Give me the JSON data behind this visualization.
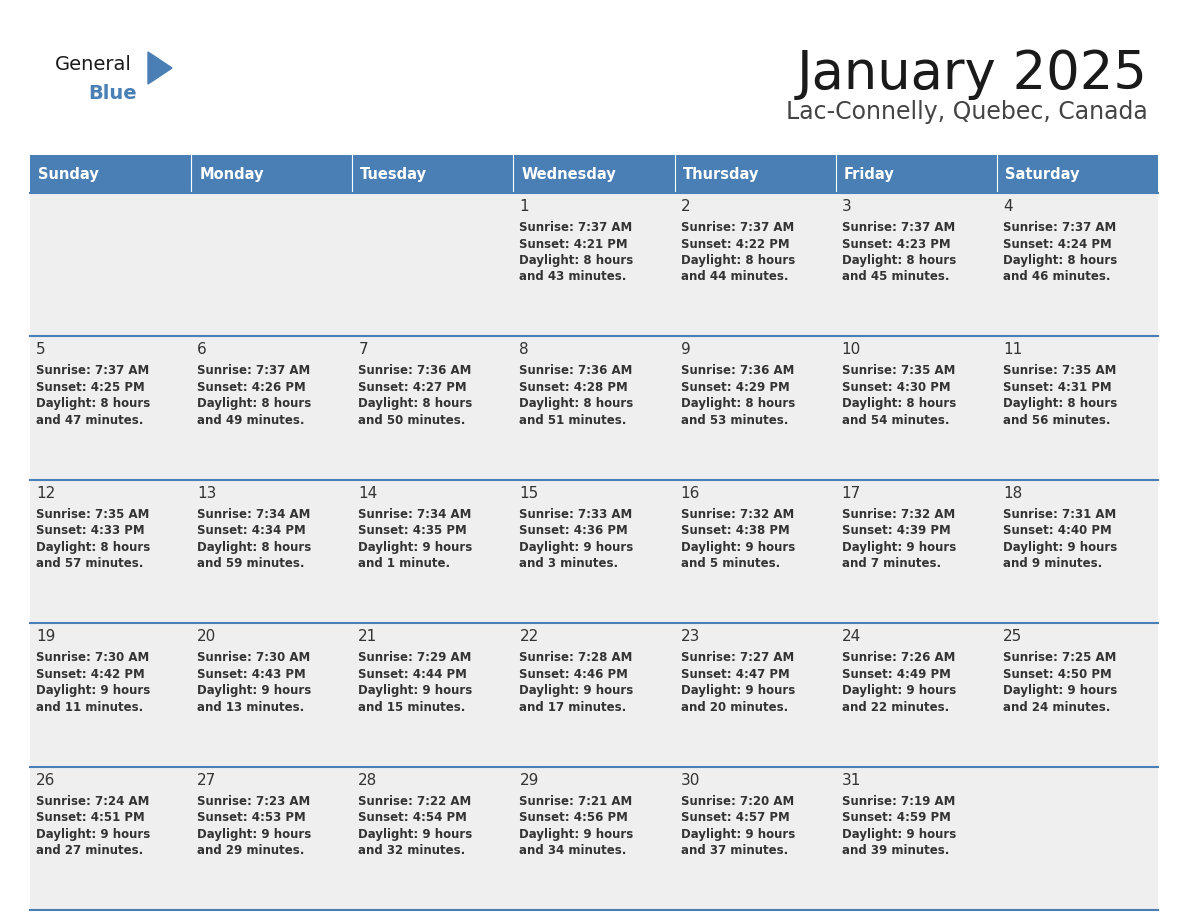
{
  "title": "January 2025",
  "subtitle": "Lac-Connelly, Quebec, Canada",
  "header_bg": "#4a7fb5",
  "header_text": "#ffffff",
  "cell_bg": "#efefef",
  "day_number_color": "#333333",
  "cell_text_color": "#333333",
  "border_color": "#4a7fb5",
  "days_of_week": [
    "Sunday",
    "Monday",
    "Tuesday",
    "Wednesday",
    "Thursday",
    "Friday",
    "Saturday"
  ],
  "calendar_data": [
    [
      {
        "day": "",
        "sunrise": "",
        "sunset": "",
        "daylight_h": "",
        "daylight_m": ""
      },
      {
        "day": "",
        "sunrise": "",
        "sunset": "",
        "daylight_h": "",
        "daylight_m": ""
      },
      {
        "day": "",
        "sunrise": "",
        "sunset": "",
        "daylight_h": "",
        "daylight_m": ""
      },
      {
        "day": "1",
        "sunrise": "7:37 AM",
        "sunset": "4:21 PM",
        "daylight_h": "8 hours",
        "daylight_m": "43 minutes."
      },
      {
        "day": "2",
        "sunrise": "7:37 AM",
        "sunset": "4:22 PM",
        "daylight_h": "8 hours",
        "daylight_m": "44 minutes."
      },
      {
        "day": "3",
        "sunrise": "7:37 AM",
        "sunset": "4:23 PM",
        "daylight_h": "8 hours",
        "daylight_m": "45 minutes."
      },
      {
        "day": "4",
        "sunrise": "7:37 AM",
        "sunset": "4:24 PM",
        "daylight_h": "8 hours",
        "daylight_m": "46 minutes."
      }
    ],
    [
      {
        "day": "5",
        "sunrise": "7:37 AM",
        "sunset": "4:25 PM",
        "daylight_h": "8 hours",
        "daylight_m": "47 minutes."
      },
      {
        "day": "6",
        "sunrise": "7:37 AM",
        "sunset": "4:26 PM",
        "daylight_h": "8 hours",
        "daylight_m": "49 minutes."
      },
      {
        "day": "7",
        "sunrise": "7:36 AM",
        "sunset": "4:27 PM",
        "daylight_h": "8 hours",
        "daylight_m": "50 minutes."
      },
      {
        "day": "8",
        "sunrise": "7:36 AM",
        "sunset": "4:28 PM",
        "daylight_h": "8 hours",
        "daylight_m": "51 minutes."
      },
      {
        "day": "9",
        "sunrise": "7:36 AM",
        "sunset": "4:29 PM",
        "daylight_h": "8 hours",
        "daylight_m": "53 minutes."
      },
      {
        "day": "10",
        "sunrise": "7:35 AM",
        "sunset": "4:30 PM",
        "daylight_h": "8 hours",
        "daylight_m": "54 minutes."
      },
      {
        "day": "11",
        "sunrise": "7:35 AM",
        "sunset": "4:31 PM",
        "daylight_h": "8 hours",
        "daylight_m": "56 minutes."
      }
    ],
    [
      {
        "day": "12",
        "sunrise": "7:35 AM",
        "sunset": "4:33 PM",
        "daylight_h": "8 hours",
        "daylight_m": "57 minutes."
      },
      {
        "day": "13",
        "sunrise": "7:34 AM",
        "sunset": "4:34 PM",
        "daylight_h": "8 hours",
        "daylight_m": "59 minutes."
      },
      {
        "day": "14",
        "sunrise": "7:34 AM",
        "sunset": "4:35 PM",
        "daylight_h": "9 hours",
        "daylight_m": "1 minute."
      },
      {
        "day": "15",
        "sunrise": "7:33 AM",
        "sunset": "4:36 PM",
        "daylight_h": "9 hours",
        "daylight_m": "3 minutes."
      },
      {
        "day": "16",
        "sunrise": "7:32 AM",
        "sunset": "4:38 PM",
        "daylight_h": "9 hours",
        "daylight_m": "5 minutes."
      },
      {
        "day": "17",
        "sunrise": "7:32 AM",
        "sunset": "4:39 PM",
        "daylight_h": "9 hours",
        "daylight_m": "7 minutes."
      },
      {
        "day": "18",
        "sunrise": "7:31 AM",
        "sunset": "4:40 PM",
        "daylight_h": "9 hours",
        "daylight_m": "9 minutes."
      }
    ],
    [
      {
        "day": "19",
        "sunrise": "7:30 AM",
        "sunset": "4:42 PM",
        "daylight_h": "9 hours",
        "daylight_m": "11 minutes."
      },
      {
        "day": "20",
        "sunrise": "7:30 AM",
        "sunset": "4:43 PM",
        "daylight_h": "9 hours",
        "daylight_m": "13 minutes."
      },
      {
        "day": "21",
        "sunrise": "7:29 AM",
        "sunset": "4:44 PM",
        "daylight_h": "9 hours",
        "daylight_m": "15 minutes."
      },
      {
        "day": "22",
        "sunrise": "7:28 AM",
        "sunset": "4:46 PM",
        "daylight_h": "9 hours",
        "daylight_m": "17 minutes."
      },
      {
        "day": "23",
        "sunrise": "7:27 AM",
        "sunset": "4:47 PM",
        "daylight_h": "9 hours",
        "daylight_m": "20 minutes."
      },
      {
        "day": "24",
        "sunrise": "7:26 AM",
        "sunset": "4:49 PM",
        "daylight_h": "9 hours",
        "daylight_m": "22 minutes."
      },
      {
        "day": "25",
        "sunrise": "7:25 AM",
        "sunset": "4:50 PM",
        "daylight_h": "9 hours",
        "daylight_m": "24 minutes."
      }
    ],
    [
      {
        "day": "26",
        "sunrise": "7:24 AM",
        "sunset": "4:51 PM",
        "daylight_h": "9 hours",
        "daylight_m": "27 minutes."
      },
      {
        "day": "27",
        "sunrise": "7:23 AM",
        "sunset": "4:53 PM",
        "daylight_h": "9 hours",
        "daylight_m": "29 minutes."
      },
      {
        "day": "28",
        "sunrise": "7:22 AM",
        "sunset": "4:54 PM",
        "daylight_h": "9 hours",
        "daylight_m": "32 minutes."
      },
      {
        "day": "29",
        "sunrise": "7:21 AM",
        "sunset": "4:56 PM",
        "daylight_h": "9 hours",
        "daylight_m": "34 minutes."
      },
      {
        "day": "30",
        "sunrise": "7:20 AM",
        "sunset": "4:57 PM",
        "daylight_h": "9 hours",
        "daylight_m": "37 minutes."
      },
      {
        "day": "31",
        "sunrise": "7:19 AM",
        "sunset": "4:59 PM",
        "daylight_h": "9 hours",
        "daylight_m": "39 minutes."
      },
      {
        "day": "",
        "sunrise": "",
        "sunset": "",
        "daylight_h": "",
        "daylight_m": ""
      }
    ]
  ],
  "logo_general_color": "#1a1a1a",
  "logo_blue_color": "#4a7fb5",
  "logo_triangle_color": "#4a7fb5"
}
